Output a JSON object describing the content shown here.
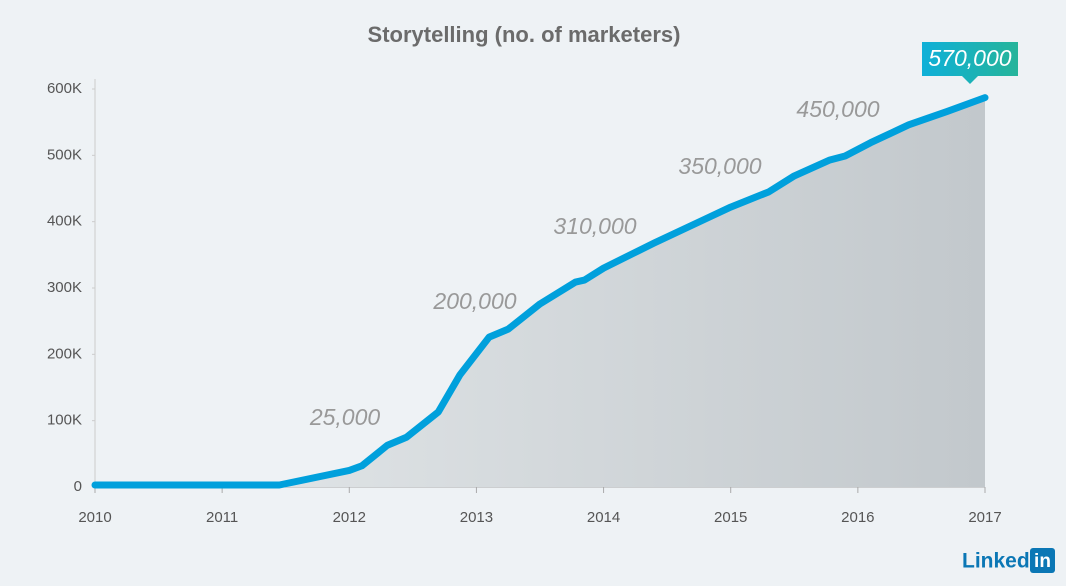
{
  "chart_data": {
    "type": "area-line",
    "title": "Storytelling (no. of marketers)",
    "x": [
      2010.0,
      2011.45,
      2012.0,
      2012.1,
      2012.3,
      2012.45,
      2012.7,
      2012.87,
      2013.1,
      2013.25,
      2013.5,
      2013.78,
      2013.85,
      2014.0,
      2014.4,
      2014.8,
      2015.0,
      2015.3,
      2015.5,
      2015.78,
      2015.9,
      2016.1,
      2016.4,
      2016.7,
      2017.0
    ],
    "series": [
      {
        "color": "#00a0dc",
        "values": [
          3000,
          3000,
          25000,
          32000,
          63000,
          75000,
          113000,
          169000,
          226000,
          238000,
          276000,
          309000,
          312000,
          330000,
          368000,
          404000,
          422000,
          445000,
          469000,
          493000,
          499000,
          519000,
          546000,
          566000,
          587000
        ]
      }
    ],
    "xlim": [
      2010,
      2017
    ],
    "xticks": [
      2010,
      2011,
      2012,
      2013,
      2014,
      2015,
      2016,
      2017
    ],
    "ylim": [
      0,
      600000
    ],
    "yticks": [
      0,
      {
        "value": 100000,
        "label": "100K"
      },
      {
        "value": 200000,
        "label": "200K"
      },
      {
        "value": 300000,
        "label": "300K"
      },
      {
        "value": 400000,
        "label": "400K"
      },
      {
        "value": 500000,
        "label": "500K"
      },
      {
        "value": 600000,
        "label": "600K"
      }
    ],
    "area_color": "#c9cfd3",
    "annotations": [
      "25,000",
      "200,000",
      "310,000",
      "350,000",
      "450,000",
      "570,000"
    ]
  },
  "logo": {
    "text": "Linked",
    "badge": "in"
  }
}
